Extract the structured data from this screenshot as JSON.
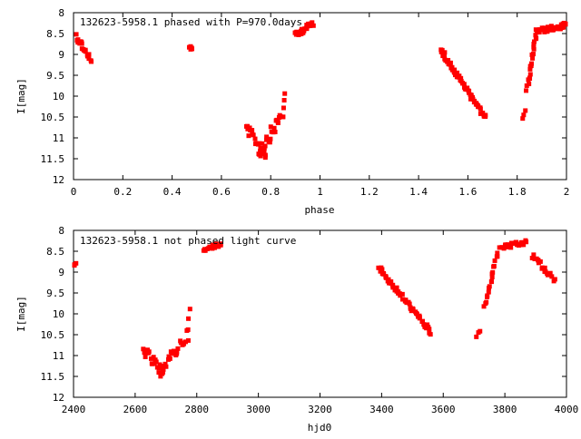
{
  "chart_data": [
    {
      "type": "scatter",
      "title": "132623-5958.1 phased with P=970.0days",
      "xlabel": "phase",
      "ylabel": "I[mag]",
      "xlim": [
        0,
        2
      ],
      "ylim": [
        12,
        8
      ],
      "y_inverted": true,
      "xticks": [
        0,
        0.2,
        0.4,
        0.6,
        0.8,
        1,
        1.2,
        1.4,
        1.6,
        1.8,
        2
      ],
      "xtick_labels": [
        "0",
        "0.2",
        "0.4",
        "0.6",
        "0.8",
        "1",
        "1.2",
        "1.4",
        "1.6",
        "1.8",
        "2"
      ],
      "yticks": [
        8,
        8.5,
        9,
        9.5,
        10,
        10.5,
        11,
        11.5,
        12
      ],
      "ytick_labels": [
        "8",
        "8.5",
        "9",
        "9.5",
        "10",
        "10.5",
        "11",
        "11.5",
        "12"
      ],
      "grid": false,
      "legend": "none",
      "marker_color": "#ff0000",
      "segments": [
        {
          "x0": 0.01,
          "y0": 8.55,
          "x1": 0.06,
          "y1": 9.05,
          "n": 16,
          "scatter": 0.08
        },
        {
          "x0": 0.06,
          "y0": 9.05,
          "x1": 0.07,
          "y1": 9.2,
          "n": 4,
          "scatter": 0.05
        },
        {
          "x0": 0.47,
          "y0": 8.8,
          "x1": 0.48,
          "y1": 8.9,
          "n": 5,
          "scatter": 0.04
        },
        {
          "x0": 0.7,
          "y0": 10.75,
          "x1": 0.78,
          "y1": 11.4,
          "n": 22,
          "scatter": 0.12
        },
        {
          "x0": 0.75,
          "y0": 11.4,
          "x1": 0.85,
          "y1": 10.4,
          "n": 28,
          "scatter": 0.15
        },
        {
          "x0": 0.85,
          "y0": 10.3,
          "x1": 0.86,
          "y1": 9.9,
          "n": 3,
          "scatter": 0.05
        },
        {
          "x0": 0.9,
          "y0": 8.55,
          "x1": 0.97,
          "y1": 8.25,
          "n": 26,
          "scatter": 0.07
        },
        {
          "x0": 1.49,
          "y0": 8.9,
          "x1": 1.67,
          "y1": 10.5,
          "n": 60,
          "scatter": 0.06
        },
        {
          "x0": 1.82,
          "y0": 10.55,
          "x1": 1.83,
          "y1": 10.35,
          "n": 3,
          "scatter": 0.05
        },
        {
          "x0": 1.84,
          "y0": 9.85,
          "x1": 1.88,
          "y1": 8.45,
          "n": 22,
          "scatter": 0.05
        },
        {
          "x0": 1.88,
          "y0": 8.45,
          "x1": 2.0,
          "y1": 8.3,
          "n": 40,
          "scatter": 0.06
        }
      ]
    },
    {
      "type": "scatter",
      "title": "132623-5958.1 not phased light curve",
      "xlabel": "hjd0",
      "ylabel": "I[mag]",
      "xlim": [
        2400,
        4000
      ],
      "ylim": [
        12,
        8
      ],
      "y_inverted": true,
      "xticks": [
        2400,
        2600,
        2800,
        3000,
        3200,
        3400,
        3600,
        3800,
        4000
      ],
      "xtick_labels": [
        "2400",
        "2600",
        "2800",
        "3000",
        "3200",
        "3400",
        "3600",
        "3800",
        "4000"
      ],
      "yticks": [
        8,
        8.5,
        9,
        9.5,
        10,
        10.5,
        11,
        11.5,
        12
      ],
      "ytick_labels": [
        "8",
        "8.5",
        "9",
        "9.5",
        "10",
        "10.5",
        "11",
        "11.5",
        "12"
      ],
      "grid": false,
      "legend": "none",
      "marker_color": "#ff0000",
      "segments": [
        {
          "x0": 2400,
          "y0": 8.85,
          "x1": 2410,
          "y1": 8.8,
          "n": 3,
          "scatter": 0.05
        },
        {
          "x0": 2625,
          "y0": 10.85,
          "x1": 2690,
          "y1": 11.45,
          "n": 20,
          "scatter": 0.14
        },
        {
          "x0": 2680,
          "y0": 11.4,
          "x1": 2770,
          "y1": 10.5,
          "n": 26,
          "scatter": 0.14
        },
        {
          "x0": 2770,
          "y0": 10.4,
          "x1": 2780,
          "y1": 9.9,
          "n": 3,
          "scatter": 0.05
        },
        {
          "x0": 2820,
          "y0": 8.5,
          "x1": 2880,
          "y1": 8.3,
          "n": 14,
          "scatter": 0.06
        },
        {
          "x0": 3390,
          "y0": 8.9,
          "x1": 3560,
          "y1": 10.45,
          "n": 60,
          "scatter": 0.06
        },
        {
          "x0": 3710,
          "y0": 10.55,
          "x1": 3720,
          "y1": 10.4,
          "n": 3,
          "scatter": 0.04
        },
        {
          "x0": 3735,
          "y0": 9.85,
          "x1": 3780,
          "y1": 8.45,
          "n": 20,
          "scatter": 0.05
        },
        {
          "x0": 3790,
          "y0": 8.4,
          "x1": 3870,
          "y1": 8.3,
          "n": 24,
          "scatter": 0.06
        },
        {
          "x0": 3890,
          "y0": 8.6,
          "x1": 3960,
          "y1": 9.2,
          "n": 20,
          "scatter": 0.08
        }
      ]
    }
  ]
}
